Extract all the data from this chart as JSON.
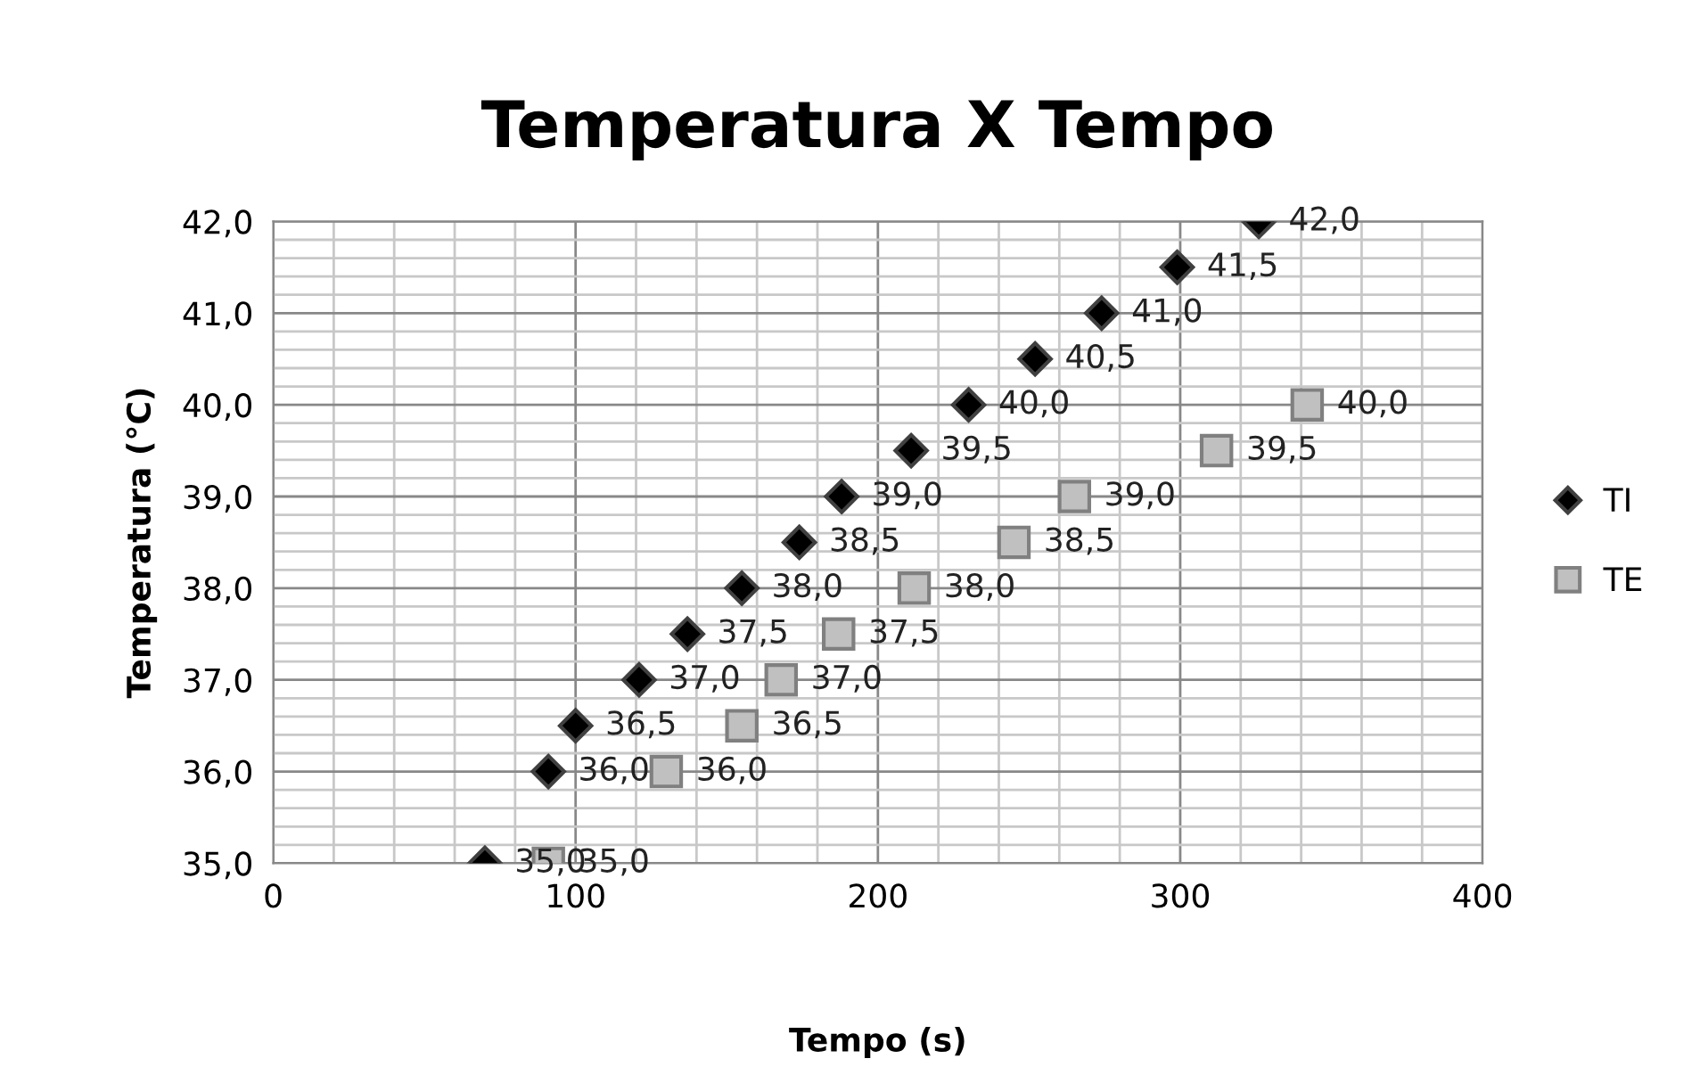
{
  "chart_data": {
    "type": "scatter",
    "title": "Temperatura X Tempo",
    "xlabel": "Tempo (s)",
    "ylabel": "Temperatura (°C)",
    "xlim": [
      0,
      400
    ],
    "xticks": [
      0,
      100,
      200,
      300,
      400
    ],
    "ylim": [
      35,
      42
    ],
    "yticks": [
      {
        "value": 35,
        "label": "35,0"
      },
      {
        "value": 36,
        "label": "36,0"
      },
      {
        "value": 37,
        "label": "37,0"
      },
      {
        "value": 38,
        "label": "38,0"
      },
      {
        "value": 39,
        "label": "39,0"
      },
      {
        "value": 40,
        "label": "40,0"
      },
      {
        "value": 41,
        "label": "41,0"
      },
      {
        "value": 42,
        "label": "42,0"
      }
    ],
    "grid": true,
    "legend": "right",
    "series": [
      {
        "name": "TI",
        "color": "#000000",
        "marker": "diamond",
        "x": [
          70,
          91,
          100,
          121,
          137,
          155,
          174,
          188,
          211,
          230,
          252,
          274,
          299,
          326
        ],
        "values": [
          35.0,
          36.0,
          36.5,
          37.0,
          37.5,
          38.0,
          38.5,
          39.0,
          39.5,
          40.0,
          40.5,
          41.0,
          41.5,
          42.0
        ],
        "value_labels": [
          "35,0",
          "36,0",
          "36,5",
          "37,0",
          "37,5",
          "38,0",
          "38,5",
          "39,0",
          "39,5",
          "40,0",
          "40,5",
          "41,0",
          "41,5",
          "42,0"
        ]
      },
      {
        "name": "TE",
        "color": "#c0c0c0",
        "marker": "square",
        "x": [
          91,
          130,
          155,
          168,
          187,
          212,
          245,
          265,
          312,
          342
        ],
        "values": [
          35.0,
          36.0,
          36.5,
          37.0,
          37.5,
          38.0,
          38.5,
          39.0,
          39.5,
          40.0
        ],
        "value_labels": [
          "35,0",
          "36,0",
          "36,5",
          "37,0",
          "37,5",
          "38,0",
          "38,5",
          "39,0",
          "39,5",
          "40,0"
        ]
      }
    ]
  }
}
